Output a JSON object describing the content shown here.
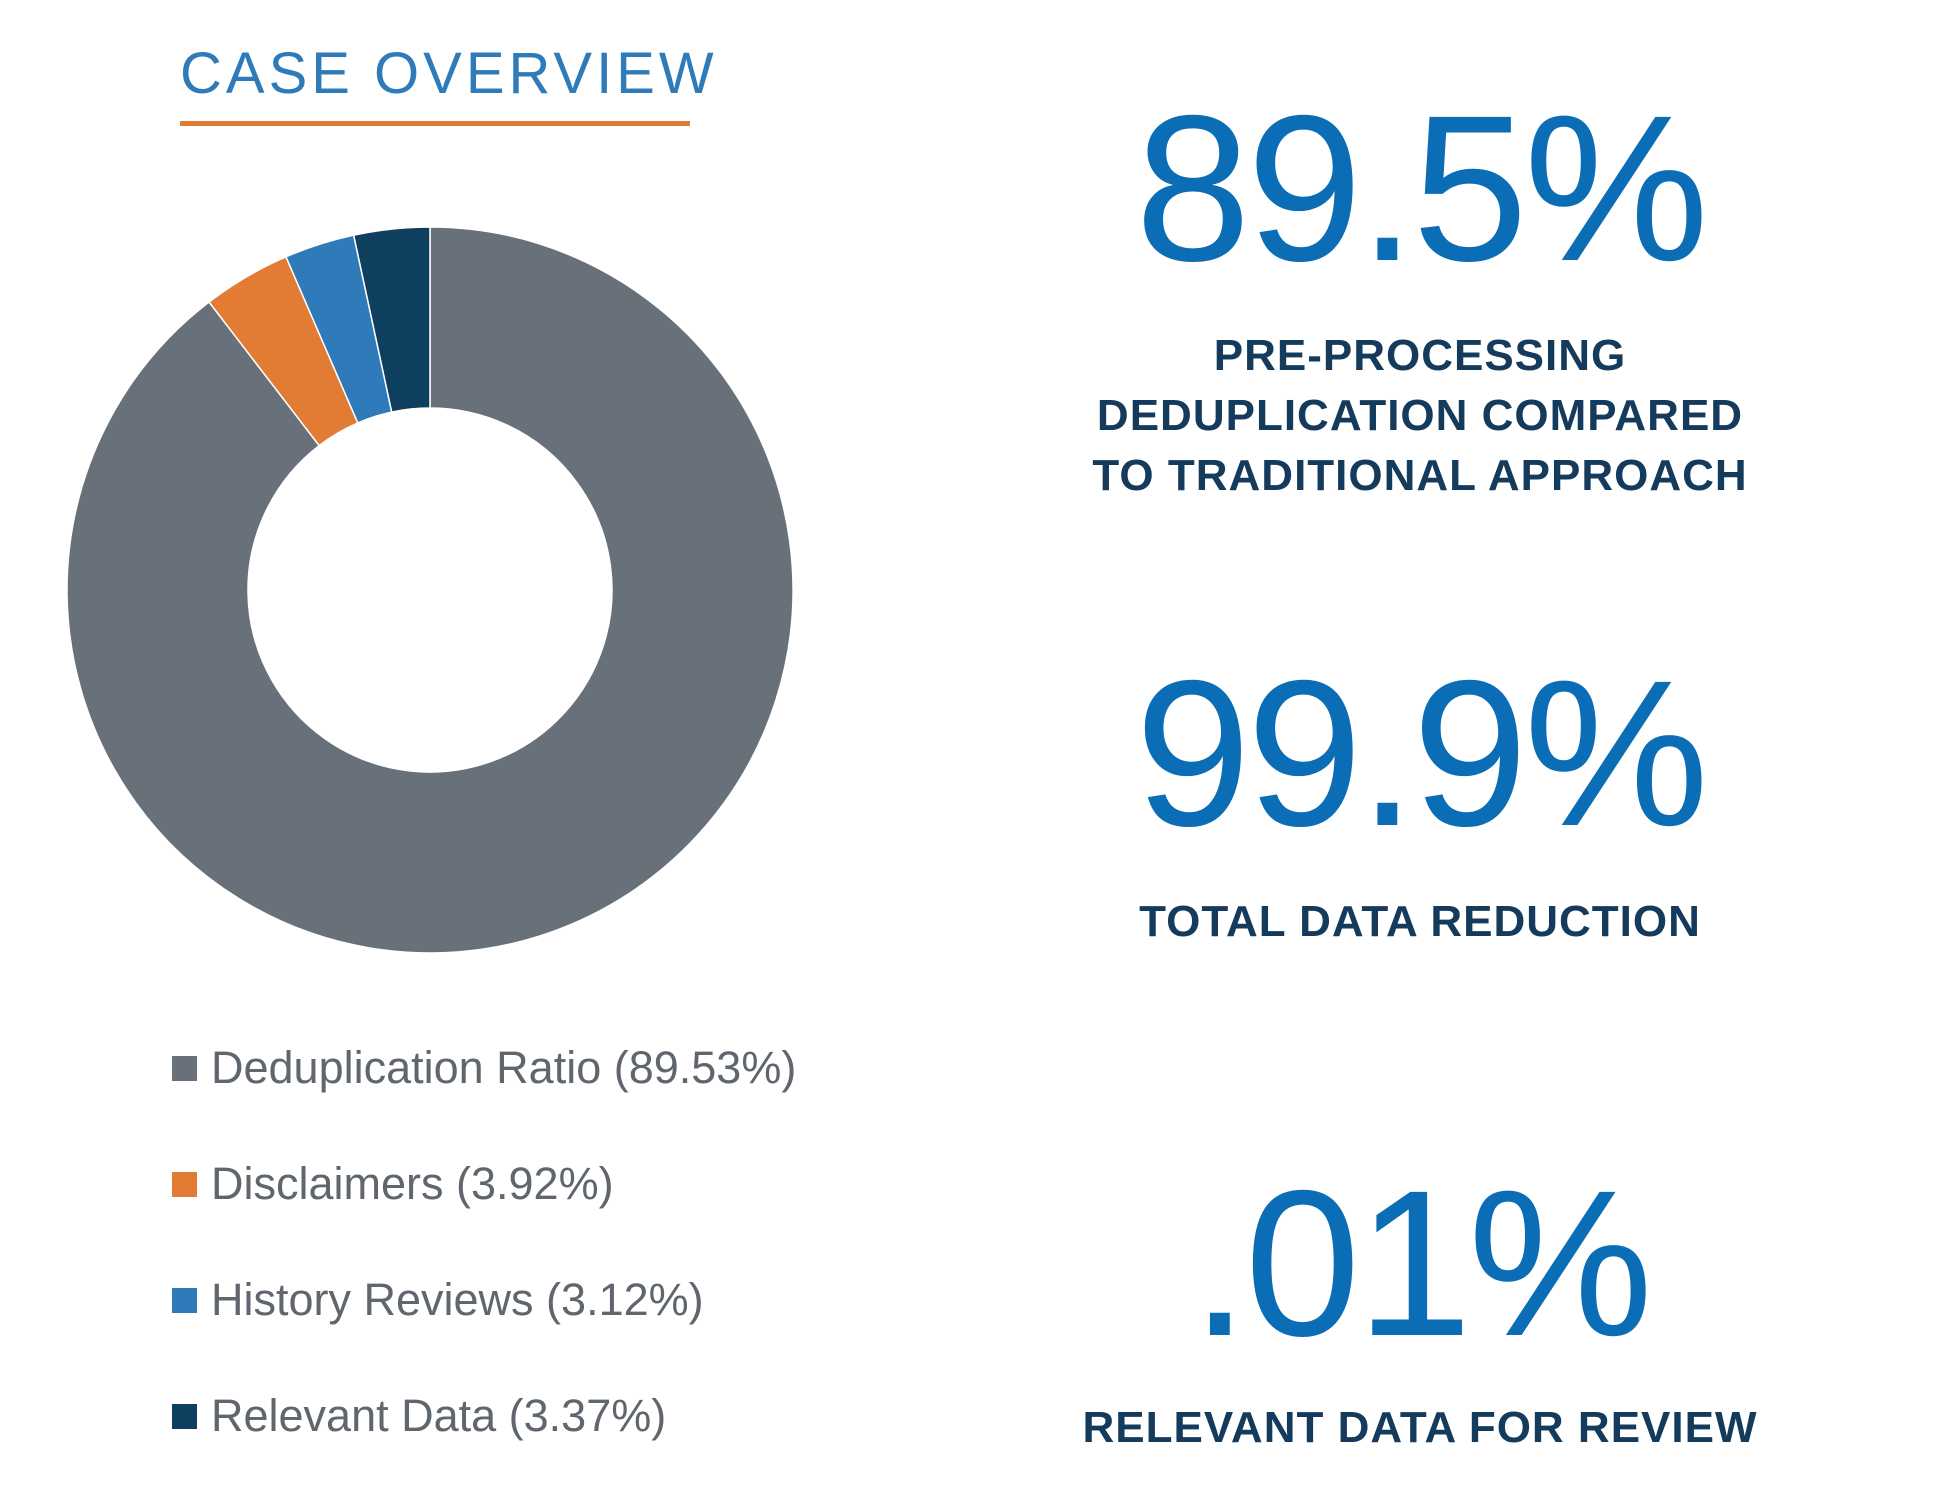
{
  "header": {
    "title": "CASE OVERVIEW",
    "title_color": "#2f7ab8",
    "rule_color": "#e27b33"
  },
  "chart_data": {
    "type": "pie",
    "donut": true,
    "categories": [
      "Deduplication Ratio",
      "Disclaimers",
      "History Reviews",
      "Relevant Data"
    ],
    "values": [
      89.53,
      3.92,
      3.12,
      3.37
    ],
    "colors": [
      "#68717a",
      "#e27b33",
      "#2f7ab8",
      "#0e3f5f"
    ],
    "legend": [
      {
        "label": "Deduplication Ratio (89.53%)"
      },
      {
        "label": "Disclaimers (3.92%)"
      },
      {
        "label": "History Reviews (3.12%)"
      },
      {
        "label": "Relevant Data (3.37%)"
      }
    ],
    "legend_placement": "bottom",
    "legend_text_color": "#5f666d"
  },
  "stats": [
    {
      "value": "89.5%",
      "caption_lines": [
        "PRE-PROCESSING",
        "DEDUPLICATION COMPARED",
        "TO TRADITIONAL APPROACH"
      ]
    },
    {
      "value": "99.9%",
      "caption_lines": [
        "TOTAL DATA REDUCTION"
      ]
    },
    {
      "value": ".01%",
      "caption_lines": [
        "RELEVANT DATA FOR REVIEW"
      ]
    }
  ],
  "colors": {
    "stat_value": "#0a6db5",
    "stat_caption": "#143a5c"
  }
}
